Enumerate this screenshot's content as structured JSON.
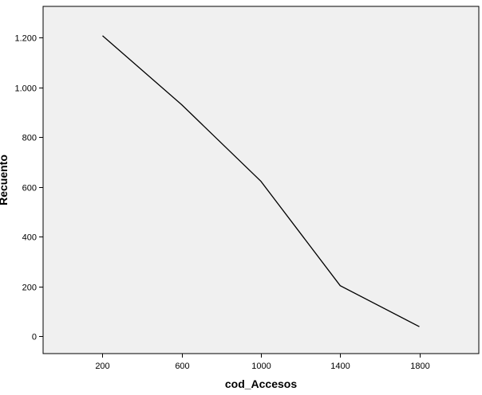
{
  "chart_data": {
    "type": "line",
    "title": "",
    "xlabel": "cod_Accesos",
    "ylabel": "Recuento",
    "x": [
      200,
      600,
      1000,
      1400,
      1800
    ],
    "series": [
      {
        "values": [
          1207,
          930,
          622,
          203,
          38
        ]
      }
    ],
    "xlim": [
      -100,
      2100
    ],
    "ylim": [
      -70,
      1325
    ],
    "x_ticks": [
      200,
      600,
      1000,
      1400,
      1800
    ],
    "x_tick_labels": [
      "200",
      "600",
      "1000",
      "1400",
      "1800"
    ],
    "y_ticks": [
      0,
      200,
      400,
      600,
      800,
      1000,
      1200
    ],
    "y_tick_labels": [
      "0",
      "200",
      "400",
      "600",
      "800",
      "1.000",
      "1.200"
    ],
    "grid": false,
    "legend": "none",
    "colors": {
      "plot_background": "#f0f0f0",
      "line": "#000000",
      "axis": "#000000"
    }
  }
}
